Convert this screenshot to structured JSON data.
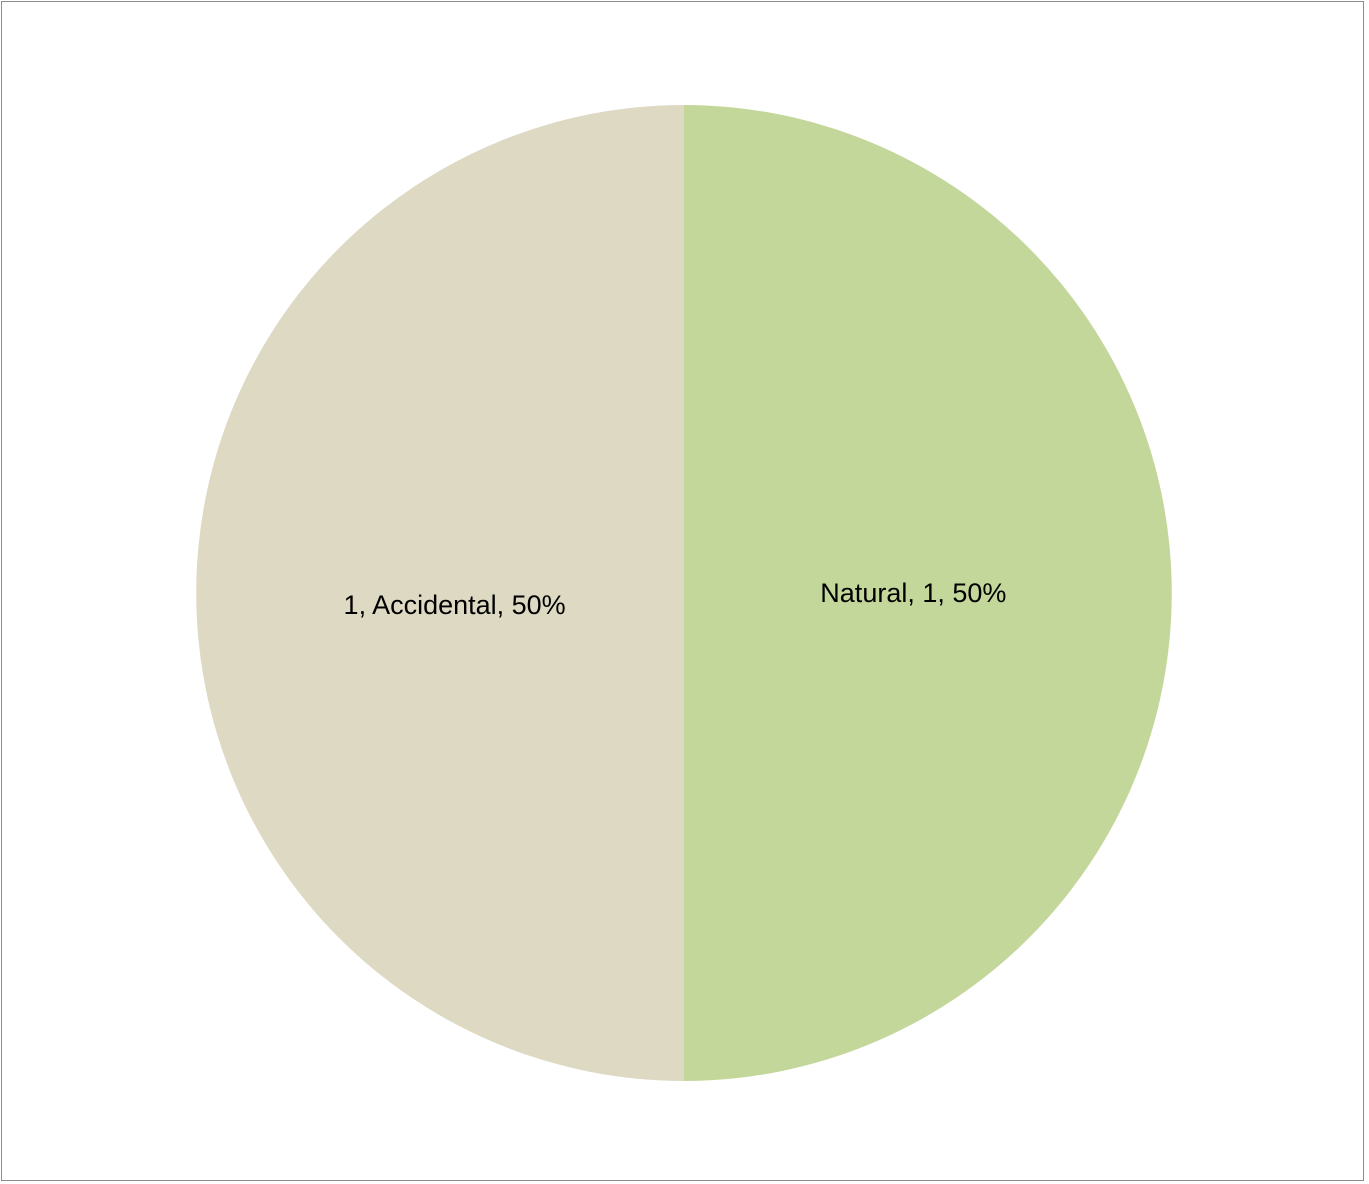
{
  "chart_data": {
    "type": "pie",
    "title": "",
    "slices": [
      {
        "name": "Natural",
        "value": 1,
        "percent": 50,
        "color": "#c4d79b",
        "label": "Natural, 1, 50%"
      },
      {
        "name": "Accidental",
        "value": 1,
        "percent": 50,
        "color": "#ddd9c3",
        "label": "1, Accidental, 50%"
      }
    ],
    "start_angle_deg": 0,
    "direction": "clockwise",
    "legend": "none"
  }
}
